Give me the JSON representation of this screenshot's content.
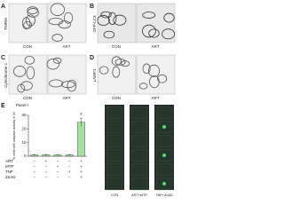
{
  "panels": [
    {
      "label": "A",
      "side_label": "TMRM",
      "captions": [
        "CON",
        "ART"
      ]
    },
    {
      "label": "B",
      "side_label": "GFP-LC3",
      "captions": [
        "CON",
        "ART"
      ]
    },
    {
      "label": "C",
      "side_label": "Cytochrome c",
      "captions": [
        "CON",
        "ART"
      ]
    },
    {
      "label": "D",
      "side_label": "LAMP1",
      "captions": [
        "CON",
        "ART"
      ]
    }
  ],
  "chart_data": {
    "type": "bar",
    "label": "E",
    "title": "Panel I",
    "y_label": "% cells with caspase activity in 1h",
    "categories": [
      null,
      null,
      null,
      null,
      null
    ],
    "values": [
      1,
      1,
      1,
      1,
      25
    ],
    "errors": [
      0.3,
      0.3,
      0.3,
      0.3,
      3
    ],
    "color": "#a6e0a0",
    "ylim": [
      0,
      30
    ],
    "yticks": [
      0,
      10,
      20,
      30
    ],
    "annotation": "*",
    "treatments": [
      {
        "name": "ART",
        "signs": [
          "−",
          "+",
          "−",
          "−",
          "+"
        ]
      },
      {
        "name": "MTP",
        "signs": [
          "−",
          "−",
          "+",
          "−",
          "+"
        ]
      },
      {
        "name": "TNF",
        "signs": [
          "−",
          "−",
          "−",
          "+",
          "+"
        ]
      },
      {
        "name": "ZnAD",
        "signs": [
          "−",
          "−",
          "−",
          "−",
          "+"
        ]
      }
    ]
  },
  "strip": {
    "captions": [
      "CON",
      "ART+MTP",
      "TNF+ZnAD"
    ]
  }
}
